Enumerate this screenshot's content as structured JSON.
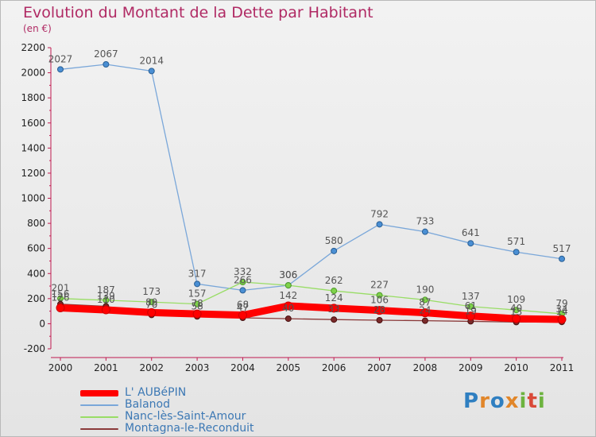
{
  "title": "Evolution du Montant de la Dette par Habitant",
  "subtitle": "(en €)",
  "logo": "Proxiti",
  "chart_data": {
    "type": "line",
    "x": [
      "2000",
      "2001",
      "2002",
      "2003",
      "2004",
      "2005",
      "2006",
      "2007",
      "2008",
      "2009",
      "2010",
      "2011"
    ],
    "ylim": [
      -200,
      2200
    ],
    "yticks": [
      "-200",
      "0",
      "200",
      "400",
      "600",
      "800",
      "1000",
      "1200",
      "1400",
      "1600",
      "1800",
      "2000",
      "2200"
    ],
    "grid": false,
    "legend_position": "bottom-left",
    "series": [
      {
        "name": "L' AUBéPIN",
        "color": "#ff0000",
        "values": [
          126,
          110,
          89,
          78,
          68,
          142,
          124,
          106,
          87,
          61,
          40,
          34
        ],
        "labels": [
          "126",
          "110",
          "89",
          "78",
          "68",
          "142",
          "124",
          "106",
          "87",
          "61",
          "40",
          "34"
        ]
      },
      {
        "name": "Balanod",
        "color": "#7aa7d9",
        "values": [
          2027,
          2067,
          2014,
          317,
          266,
          306,
          580,
          792,
          733,
          641,
          571,
          517
        ],
        "labels": [
          "2027",
          "2067",
          "2014",
          "317",
          "266",
          "306",
          "580",
          "792",
          "733",
          "641",
          "571",
          "517"
        ]
      },
      {
        "name": "Nanc-lès-Saint-Amour",
        "color": "#99dd66",
        "values": [
          201,
          187,
          173,
          157,
          332,
          306,
          262,
          227,
          190,
          137,
          109,
          79
        ],
        "labels": [
          "201",
          "187",
          "173",
          "157",
          "332",
          "306",
          "262",
          "227",
          "190",
          "137",
          "109",
          "79"
        ]
      },
      {
        "name": "Montagna-le-Reconduit",
        "color": "#8b3a3a",
        "values": [
          156,
          139,
          70,
          58,
          47,
          40,
          33,
          28,
          24,
          19,
          13,
          14
        ],
        "labels": [
          "156",
          "139",
          "70",
          "58",
          "47",
          "40",
          "33",
          "28",
          "24",
          "19",
          "13",
          "14"
        ]
      }
    ]
  }
}
